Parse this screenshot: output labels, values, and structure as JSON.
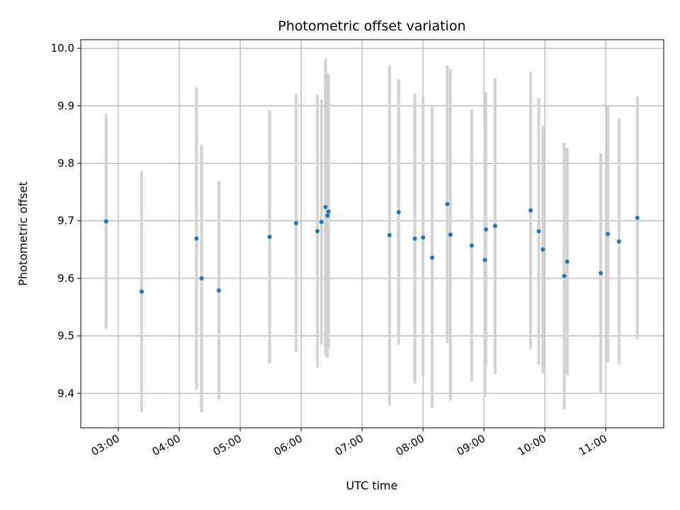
{
  "chart_data": {
    "type": "scatter",
    "title": "Photometric offset variation",
    "xlabel": "UTC time",
    "ylabel": "Photometric offset",
    "xlim": [
      "02:23",
      "11:57"
    ],
    "ylim": [
      9.34,
      10.015
    ],
    "x_ticks": [
      "03:00",
      "04:00",
      "05:00",
      "06:00",
      "07:00",
      "08:00",
      "09:00",
      "10:00",
      "11:00"
    ],
    "y_ticks": [
      9.4,
      9.5,
      9.6,
      9.7,
      9.8,
      9.9,
      10.0
    ],
    "y_tick_labels": [
      "9.4",
      "9.5",
      "9.6",
      "9.7",
      "9.8",
      "9.9",
      "10.0"
    ],
    "grid": true,
    "colors": {
      "point": "#1f77b4",
      "errorbar": "#d3d3d3",
      "grid": "#b0b0b0"
    },
    "points": [
      {
        "x": "02:48",
        "y": 9.699,
        "err": 0.187
      },
      {
        "x": "03:23",
        "y": 9.577,
        "err": 0.209
      },
      {
        "x": "04:17",
        "y": 9.669,
        "err": 0.263
      },
      {
        "x": "04:22",
        "y": 9.6,
        "err": 0.233
      },
      {
        "x": "04:39",
        "y": 9.579,
        "err": 0.19
      },
      {
        "x": "05:29",
        "y": 9.672,
        "err": 0.22
      },
      {
        "x": "05:55",
        "y": 9.696,
        "err": 0.224
      },
      {
        "x": "06:16",
        "y": 9.682,
        "err": 0.237
      },
      {
        "x": "06:20",
        "y": 9.698,
        "err": 0.213
      },
      {
        "x": "06:24",
        "y": 9.724,
        "err": 0.258
      },
      {
        "x": "06:26",
        "y": 9.709,
        "err": 0.248
      },
      {
        "x": "06:27",
        "y": 9.716,
        "err": 0.238
      },
      {
        "x": "07:27",
        "y": 9.675,
        "err": 0.296
      },
      {
        "x": "07:36",
        "y": 9.715,
        "err": 0.231
      },
      {
        "x": "07:52",
        "y": 9.669,
        "err": 0.252
      },
      {
        "x": "08:00",
        "y": 9.671,
        "err": 0.242
      },
      {
        "x": "08:09",
        "y": 9.636,
        "err": 0.262
      },
      {
        "x": "08:24",
        "y": 9.729,
        "err": 0.242
      },
      {
        "x": "08:27",
        "y": 9.676,
        "err": 0.288
      },
      {
        "x": "08:48",
        "y": 9.657,
        "err": 0.237
      },
      {
        "x": "09:01",
        "y": 9.632,
        "err": 0.238
      },
      {
        "x": "09:02",
        "y": 9.685,
        "err": 0.238
      },
      {
        "x": "09:11",
        "y": 9.691,
        "err": 0.257
      },
      {
        "x": "09:46",
        "y": 9.718,
        "err": 0.241
      },
      {
        "x": "09:54",
        "y": 9.682,
        "err": 0.232
      },
      {
        "x": "09:58",
        "y": 9.65,
        "err": 0.215
      },
      {
        "x": "10:19",
        "y": 9.604,
        "err": 0.232
      },
      {
        "x": "10:22",
        "y": 9.629,
        "err": 0.198
      },
      {
        "x": "10:55",
        "y": 9.609,
        "err": 0.209
      },
      {
        "x": "11:02",
        "y": 9.677,
        "err": 0.223
      },
      {
        "x": "11:13",
        "y": 9.664,
        "err": 0.214
      },
      {
        "x": "11:31",
        "y": 9.705,
        "err": 0.211
      }
    ]
  }
}
